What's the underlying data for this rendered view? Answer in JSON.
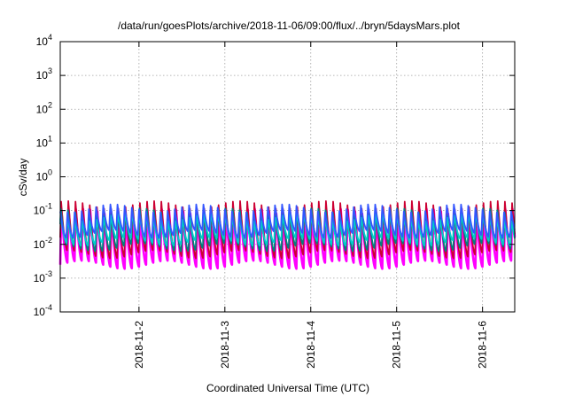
{
  "chart_data": {
    "type": "line",
    "title": "/data/run/goesPlots/archive/2018-11-06/09:00/flux/../bryn/5daysMars.plot",
    "xlabel": "Coordinated Universal Time (UTC)",
    "ylabel": "cSv/day",
    "y_scale": "log",
    "ylim": [
      0.0001,
      10000
    ],
    "y_ticks": [
      {
        "base": "10",
        "exp": "-4",
        "value": 0.0001
      },
      {
        "base": "10",
        "exp": "-3",
        "value": 0.001
      },
      {
        "base": "10",
        "exp": "-2",
        "value": 0.01
      },
      {
        "base": "10",
        "exp": "-1",
        "value": 0.1
      },
      {
        "base": "10",
        "exp": "0",
        "value": 1
      },
      {
        "base": "10",
        "exp": "1",
        "value": 10
      },
      {
        "base": "10",
        "exp": "2",
        "value": 100
      },
      {
        "base": "10",
        "exp": "3",
        "value": 1000
      },
      {
        "base": "10",
        "exp": "4",
        "value": 10000
      }
    ],
    "xlim": [
      "2018-11-01T02:00",
      "2018-11-06T09:00"
    ],
    "x_ticks": [
      {
        "label": "2018-11-2",
        "value": "2018-11-02T00:00"
      },
      {
        "label": "2018-11-3",
        "value": "2018-11-03T00:00"
      },
      {
        "label": "2018-11-4",
        "value": "2018-11-04T00:00"
      },
      {
        "label": "2018-11-5",
        "value": "2018-11-05T00:00"
      },
      {
        "label": "2018-11-6",
        "value": "2018-11-06T00:00"
      }
    ],
    "grid": true,
    "cycle_hours": 2.0,
    "series": [
      {
        "color": "#ff00ff",
        "peak": 0.11,
        "trough": 0.0025
      },
      {
        "color": "#cc0033",
        "peak": 0.16,
        "trough": 0.005
      },
      {
        "color": "#008080",
        "peak": 0.1,
        "trough": 0.008
      },
      {
        "color": "#00cccc",
        "peak": 0.07,
        "trough": 0.012
      },
      {
        "color": "#3355ff",
        "peak": 0.12,
        "trough": 0.02
      }
    ]
  }
}
